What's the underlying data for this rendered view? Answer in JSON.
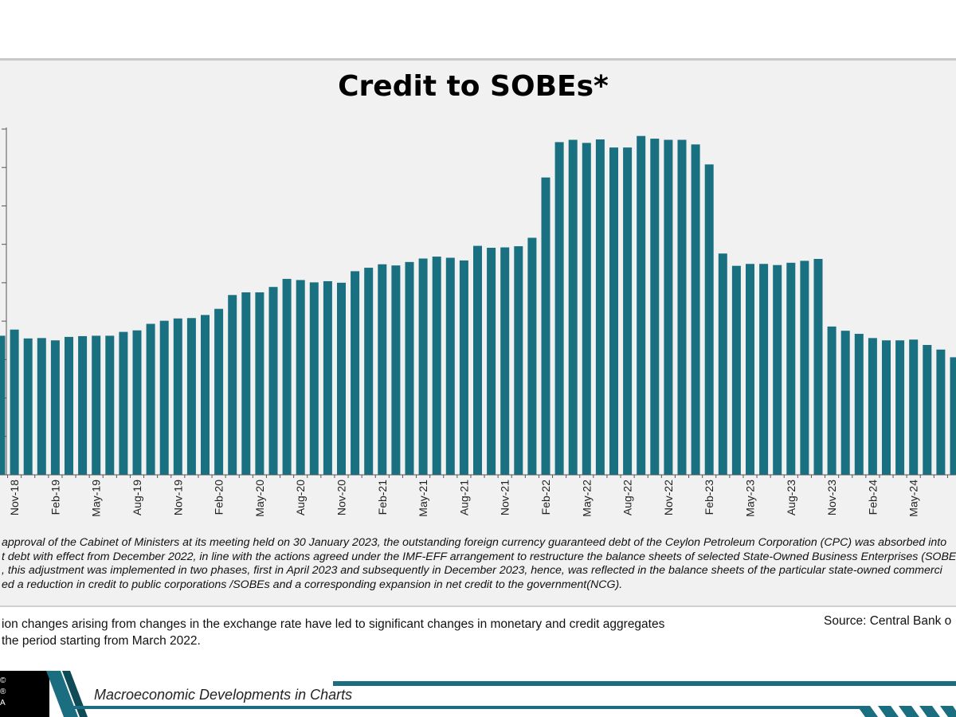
{
  "chart_data": {
    "type": "bar",
    "title": "Credit to SOBEs*",
    "bar_color": "#197081",
    "ylim": [
      0,
      9000
    ],
    "y_gridline_step": 1000,
    "y_tick_labels_visible": false,
    "categories": [
      "Oct-18",
      "Nov-18",
      "Dec-18",
      "Jan-19",
      "Feb-19",
      "Mar-19",
      "Apr-19",
      "May-19",
      "Jun-19",
      "Jul-19",
      "Aug-19",
      "Sep-19",
      "Oct-19",
      "Nov-19",
      "Dec-19",
      "Jan-20",
      "Feb-20",
      "Mar-20",
      "Apr-20",
      "May-20",
      "Jun-20",
      "Jul-20",
      "Aug-20",
      "Sep-20",
      "Oct-20",
      "Nov-20",
      "Dec-20",
      "Jan-21",
      "Feb-21",
      "Mar-21",
      "Apr-21",
      "May-21",
      "Jun-21",
      "Jul-21",
      "Aug-21",
      "Sep-21",
      "Oct-21",
      "Nov-21",
      "Dec-21",
      "Jan-22",
      "Feb-22",
      "Mar-22",
      "Apr-22",
      "May-22",
      "Jun-22",
      "Jul-22",
      "Aug-22",
      "Sep-22",
      "Oct-22",
      "Nov-22",
      "Dec-22",
      "Jan-23",
      "Feb-23",
      "Mar-23",
      "Apr-23",
      "May-23",
      "Jun-23",
      "Jul-23",
      "Aug-23",
      "Sep-23",
      "Oct-23",
      "Nov-23",
      "Dec-23",
      "Jan-24",
      "Feb-24",
      "Mar-24",
      "Apr-24",
      "May-24",
      "Jun-24",
      "Jul-24",
      "Aug-24"
    ],
    "x_tick_labels": [
      "Nov-18",
      "Feb-19",
      "May-19",
      "Aug-19",
      "Nov-19",
      "Feb-20",
      "May-20",
      "Aug-20",
      "Nov-20",
      "Feb-21",
      "May-21",
      "Aug-21",
      "Nov-21",
      "Feb-22",
      "May-22",
      "Aug-22",
      "Nov-22",
      "Feb-23",
      "May-23",
      "Aug-23",
      "Nov-23",
      "Feb-24",
      "May-24"
    ],
    "values": [
      3620,
      3780,
      3550,
      3560,
      3500,
      3590,
      3610,
      3620,
      3620,
      3720,
      3760,
      3930,
      4010,
      4070,
      4080,
      4160,
      4320,
      4680,
      4750,
      4750,
      4890,
      5100,
      5070,
      5010,
      5040,
      5000,
      5300,
      5390,
      5480,
      5450,
      5540,
      5630,
      5680,
      5650,
      5580,
      5960,
      5910,
      5920,
      5950,
      6170,
      7740,
      8660,
      8720,
      8640,
      8730,
      8520,
      8520,
      8820,
      8750,
      8720,
      8720,
      8600,
      8080,
      5760,
      5440,
      5490,
      5490,
      5460,
      5520,
      5570,
      5620,
      3860,
      3750,
      3670,
      3560,
      3500,
      3500,
      3520,
      3380,
      3260,
      3060
    ]
  },
  "footnote": {
    "lines": [
      "approval of the Cabinet of Ministers at its meeting held on 30 January 2023, the outstanding foreign currency guaranteed debt of the Ceylon Petroleum Corporation (CPC) was absorbed into",
      "t debt with effect from December 2022, in line with the actions agreed under the IMF-EFF arrangement to restructure the balance sheets of selected State-Owned Business Enterprises (SOBE",
      ", this adjustment was implemented in two phases, first in April 2023 and subsequently in December 2023, hence, was reflected in the balance sheets of the particular state-owned commerci",
      "ed a reduction in credit to public corporations /SOBEs and a corresponding expansion in net credit to the government(NCG)."
    ]
  },
  "note": {
    "line1": "ion changes arising from changes in the exchange rate have led to significant changes in monetary and credit aggregates",
    "line2": " the period starting from March 2022."
  },
  "source": "Source: Central Bank o",
  "banner": {
    "title": "Macroeconomic Developments in Charts",
    "logo_lines": [
      "©",
      "®",
      "A"
    ],
    "accent_color": "#1a6e80"
  }
}
